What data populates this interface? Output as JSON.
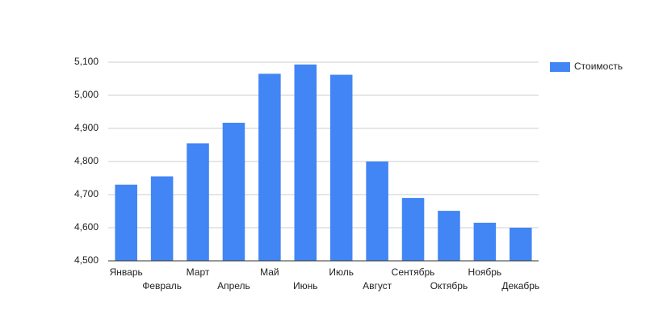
{
  "chart_data": {
    "type": "bar",
    "categories": [
      "Январь",
      "Февраль",
      "Март",
      "Апрель",
      "Май",
      "Июнь",
      "Июль",
      "Август",
      "Сентябрь",
      "Октябрь",
      "Ноябрь",
      "Декабрь"
    ],
    "series": [
      {
        "name": "Стоимость",
        "color": "#4285f4",
        "values": [
          4730,
          4755,
          4855,
          4917,
          5065,
          5093,
          5062,
          4800,
          4690,
          4651,
          4615,
          4600
        ]
      }
    ],
    "ylim": [
      4500,
      5100
    ],
    "yticks": [
      {
        "value": 4500,
        "label": "4,500"
      },
      {
        "value": 4600,
        "label": "4,600"
      },
      {
        "value": 4700,
        "label": "4,700"
      },
      {
        "value": 4800,
        "label": "4,800"
      },
      {
        "value": 4900,
        "label": "4,900"
      },
      {
        "value": 5000,
        "label": "5,000"
      },
      {
        "value": 5100,
        "label": "5,100"
      }
    ],
    "grid": true,
    "legend": "right"
  }
}
